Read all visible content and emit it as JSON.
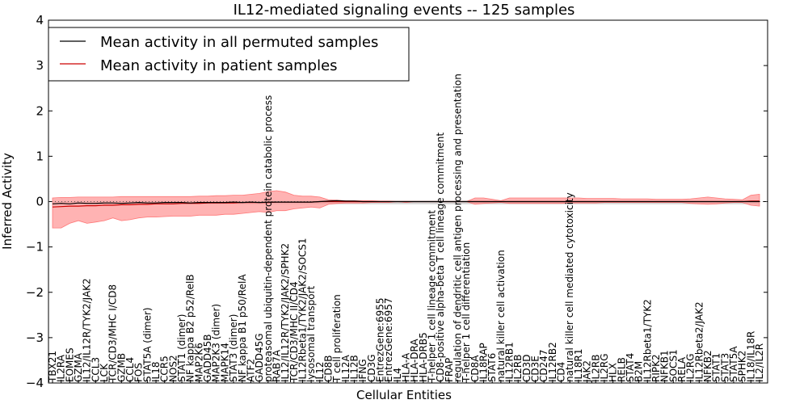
{
  "chart_data": {
    "type": "line",
    "title": "IL12-mediated signaling events -- 125 samples",
    "xlabel": "Cellular Entities",
    "ylabel": "Inferred Activity",
    "ylim": [
      -4,
      4
    ],
    "yticks": [
      "-4",
      "-3",
      "-2",
      "-1",
      "0",
      "1",
      "2",
      "3",
      "4"
    ],
    "grid": false,
    "legend_position": "top-left",
    "legend": [
      {
        "label": "Mean activity in all permuted samples",
        "color": "#000000"
      },
      {
        "label": "Mean activity in patient samples",
        "color": "#cc0000"
      }
    ],
    "band_color": "#ff9999",
    "permuted_band_color": "#bfbfbf",
    "categories": [
      "TBX21",
      "IL2RA",
      "EOMES",
      "GZMA",
      "IL12/IL12R/TYK2/JAK2",
      "CCL3",
      "LCK",
      "TCR/CD3/MHC I/CD8",
      "GZMB",
      "CCL4",
      "FOS",
      "STAT5A (dimer)",
      "IL18",
      "CCR5",
      "NOS2",
      "STAT1 (dimer)",
      "NF kappa B2 p52/RelB",
      "MAP2K6",
      "GADD45B",
      "MAP2K3 (dimer)",
      "MAPK14",
      "STAT3 (dimer)",
      "NF kappa B1 p50/RelA",
      "ATF2",
      "GADD45G",
      "proteasomal ubiquitin-dependent protein catabolic process",
      "RAB7A",
      "IL12/IL12R/TYK2/JAK2/SPHK2",
      "TCR/CD3/MHC II/CD4",
      "IL12Rbeta1/TYK2/JAK2/SOCS1",
      "lysosomal transport",
      "IL12",
      "CD8B",
      "T cell proliferation",
      "IL12A",
      "IL12B",
      "IFNG",
      "CD3G",
      "EntrezGene:6955",
      "EntrezGene:6957",
      "IL4",
      "HLA-A",
      "HLA-DRA",
      "HLA-DRB5",
      "T-helper 1 cell lineage commitment",
      "CD8-positive alpha-beta T cell lineage commitment",
      "FRAP",
      "regulation of dendritic cell antigen processing and presentation",
      "T-helper 1 cell differentiation",
      "CD8A",
      "IL18RAP",
      "STAT6",
      "natural killer cell activation",
      "IL12RB1",
      "IL2RB",
      "CD3D",
      "CD3E",
      "CD247",
      "IL12RB2",
      "CD4",
      "natural killer cell mediated cytotoxicity",
      "IL18R1",
      "JAK2",
      "IL2RB",
      "IL2RG",
      "HLX",
      "RELB",
      "STAT4",
      "B2M",
      "IL12Rbeta1/TYK2",
      "RIPK2",
      "NFKB1",
      "SOCS1",
      "RELA",
      "IL2RG",
      "IL12Rbeta2/JAK2",
      "NFKB2",
      "STAT1",
      "STAT3",
      "STAT5A",
      "SPHK2",
      "IL18/IL18R",
      "IL2/IL2R"
    ],
    "series": [
      {
        "name": "Mean activity in patient samples",
        "values": [
          -0.12,
          -0.11,
          -0.1,
          -0.1,
          -0.09,
          -0.09,
          -0.08,
          -0.08,
          -0.07,
          -0.07,
          -0.06,
          -0.06,
          -0.05,
          -0.05,
          -0.05,
          -0.04,
          -0.04,
          -0.04,
          -0.03,
          -0.03,
          -0.03,
          -0.03,
          -0.02,
          -0.02,
          -0.02,
          -0.02,
          -0.01,
          -0.01,
          -0.01,
          -0.01,
          -0.01,
          0.0,
          0.0,
          0.0,
          0.0,
          0.0,
          0.0,
          0.0,
          0.0,
          0.0,
          0.0,
          0.0,
          0.0,
          0.0,
          0.0,
          0.0,
          0.0,
          0.0,
          0.0,
          0.0,
          0.0,
          0.0,
          0.0,
          0.0,
          0.0,
          0.0,
          0.0,
          0.0,
          0.0,
          0.0,
          0.0,
          0.0,
          0.0,
          0.0,
          0.0,
          0.0,
          0.0,
          0.0,
          0.0,
          0.0,
          0.0,
          0.0,
          0.0,
          0.0,
          0.0,
          0.0,
          0.0,
          0.0,
          0.0,
          0.0,
          0.0,
          0.01,
          0.01
        ]
      },
      {
        "name": "Mean activity in all permuted samples",
        "values": [
          -0.05,
          -0.04,
          -0.05,
          -0.03,
          -0.04,
          -0.04,
          -0.03,
          -0.03,
          -0.04,
          -0.03,
          -0.02,
          -0.03,
          -0.03,
          -0.02,
          -0.02,
          -0.02,
          -0.03,
          -0.02,
          -0.02,
          -0.02,
          -0.02,
          -0.01,
          -0.02,
          -0.01,
          -0.02,
          -0.01,
          -0.01,
          -0.01,
          -0.01,
          -0.01,
          -0.01,
          0.0,
          0.01,
          0.02,
          0.01,
          0.01,
          0.0,
          0.0,
          0.0,
          0.0,
          0.0,
          0.0,
          0.0,
          0.0,
          0.0,
          0.0,
          0.0,
          0.0,
          0.0,
          0.0,
          0.0,
          0.0,
          0.0,
          0.0,
          0.0,
          0.0,
          0.0,
          0.0,
          0.0,
          0.0,
          0.0,
          0.0,
          0.0,
          0.0,
          0.0,
          0.0,
          0.0,
          0.0,
          0.0,
          0.0,
          0.0,
          0.0,
          0.0,
          0.0,
          0.0,
          0.0,
          0.0,
          0.0,
          0.0,
          0.0,
          0.0,
          0.0,
          0.0
        ]
      }
    ],
    "band_upper": [
      0.08,
      0.09,
      0.09,
      0.1,
      0.1,
      0.1,
      0.1,
      0.1,
      0.11,
      0.11,
      0.11,
      0.11,
      0.11,
      0.11,
      0.11,
      0.11,
      0.11,
      0.12,
      0.12,
      0.13,
      0.13,
      0.14,
      0.14,
      0.16,
      0.18,
      0.22,
      0.24,
      0.21,
      0.14,
      0.12,
      0.12,
      0.1,
      0.04,
      0.03,
      0.02,
      0.02,
      0.02,
      0.02,
      0.01,
      0.01,
      0.0,
      0.0,
      0.0,
      0.0,
      0.0,
      0.0,
      0.0,
      0.0,
      0.0,
      0.08,
      0.08,
      0.05,
      0.02,
      0.08,
      0.08,
      0.08,
      0.08,
      0.08,
      0.08,
      0.08,
      0.08,
      0.08,
      0.07,
      0.07,
      0.07,
      0.07,
      0.06,
      0.06,
      0.06,
      0.06,
      0.05,
      0.05,
      0.05,
      0.05,
      0.06,
      0.08,
      0.1,
      0.08,
      0.06,
      0.05,
      0.04,
      0.14,
      0.16
    ],
    "band_lower": [
      -0.58,
      -0.58,
      -0.48,
      -0.42,
      -0.48,
      -0.45,
      -0.42,
      -0.36,
      -0.42,
      -0.4,
      -0.36,
      -0.34,
      -0.34,
      -0.33,
      -0.32,
      -0.32,
      -0.32,
      -0.3,
      -0.3,
      -0.3,
      -0.28,
      -0.28,
      -0.26,
      -0.24,
      -0.22,
      -0.24,
      -0.2,
      -0.2,
      -0.16,
      -0.14,
      -0.12,
      -0.14,
      -0.06,
      -0.04,
      -0.03,
      -0.03,
      -0.03,
      -0.02,
      -0.02,
      -0.02,
      0.0,
      -0.02,
      0.0,
      0.0,
      0.0,
      0.0,
      0.0,
      0.0,
      0.0,
      -0.06,
      -0.04,
      -0.03,
      -0.02,
      -0.04,
      -0.04,
      -0.04,
      -0.04,
      -0.04,
      -0.04,
      -0.04,
      -0.03,
      -0.03,
      -0.03,
      -0.03,
      -0.02,
      -0.02,
      -0.02,
      -0.02,
      -0.02,
      -0.02,
      -0.02,
      -0.02,
      -0.02,
      -0.02,
      -0.04,
      -0.05,
      -0.06,
      -0.05,
      -0.03,
      -0.02,
      -0.02,
      -0.08,
      -0.1
    ]
  }
}
